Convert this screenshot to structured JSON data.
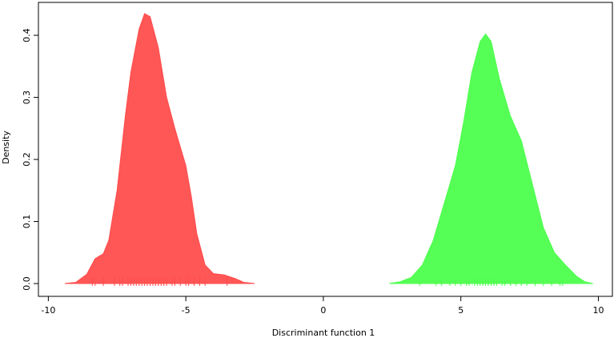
{
  "chart_data": {
    "type": "density",
    "xlabel": "Discriminant function 1",
    "ylabel": "Density",
    "xlim": [
      -10.36,
      10.51
    ],
    "ylim": [
      -0.0206,
      0.453
    ],
    "xticks": [
      -10,
      -5,
      0,
      5,
      10
    ],
    "yticks": [
      {
        "value": 0,
        "label": "0.0"
      },
      0.1,
      0.2,
      0.3,
      0.4
    ],
    "series": [
      {
        "color": "#ff4d4d",
        "x": [
          -9.4,
          -9.0,
          -8.6,
          -8.3,
          -8.0,
          -7.8,
          -7.5,
          -7.2,
          -7.0,
          -6.7,
          -6.5,
          -6.3,
          -6.0,
          -5.7,
          -5.4,
          -5.0,
          -4.8,
          -4.6,
          -4.3,
          -4.0,
          -3.6,
          -3.2,
          -2.9,
          -2.5
        ],
        "values": [
          0,
          0.002,
          0.015,
          0.04,
          0.048,
          0.07,
          0.15,
          0.27,
          0.34,
          0.41,
          0.435,
          0.43,
          0.38,
          0.3,
          0.25,
          0.19,
          0.14,
          0.08,
          0.03,
          0.016,
          0.014,
          0.008,
          0.002,
          0
        ],
        "rug": [
          -8.4,
          -8.3,
          -8.0,
          -7.6,
          -7.4,
          -7.3,
          -7.1,
          -7.0,
          -6.9,
          -6.8,
          -6.7,
          -6.6,
          -6.5,
          -6.4,
          -6.3,
          -6.2,
          -6.1,
          -6.0,
          -5.9,
          -5.8,
          -5.7,
          -5.5,
          -5.4,
          -5.2,
          -5.0,
          -4.9,
          -4.7,
          -4.5,
          -4.3,
          -3.5
        ]
      },
      {
        "color": "#4dff4d",
        "x": [
          2.4,
          2.8,
          3.2,
          3.6,
          4.0,
          4.4,
          4.8,
          5.1,
          5.4,
          5.7,
          5.9,
          6.1,
          6.4,
          6.8,
          7.2,
          7.6,
          8.0,
          8.4,
          8.8,
          9.2,
          9.5,
          9.8
        ],
        "values": [
          0,
          0.003,
          0.01,
          0.03,
          0.07,
          0.13,
          0.19,
          0.26,
          0.34,
          0.39,
          0.402,
          0.39,
          0.33,
          0.27,
          0.23,
          0.16,
          0.09,
          0.05,
          0.03,
          0.012,
          0.003,
          0
        ],
        "rug": [
          3.5,
          4.1,
          4.3,
          4.6,
          4.8,
          5.0,
          5.2,
          5.3,
          5.5,
          5.6,
          5.7,
          5.8,
          5.9,
          6.0,
          6.1,
          6.2,
          6.3,
          6.5,
          6.6,
          6.8,
          7.0,
          7.2,
          7.4,
          7.7,
          8.0,
          8.3,
          8.6,
          8.7
        ]
      }
    ]
  }
}
